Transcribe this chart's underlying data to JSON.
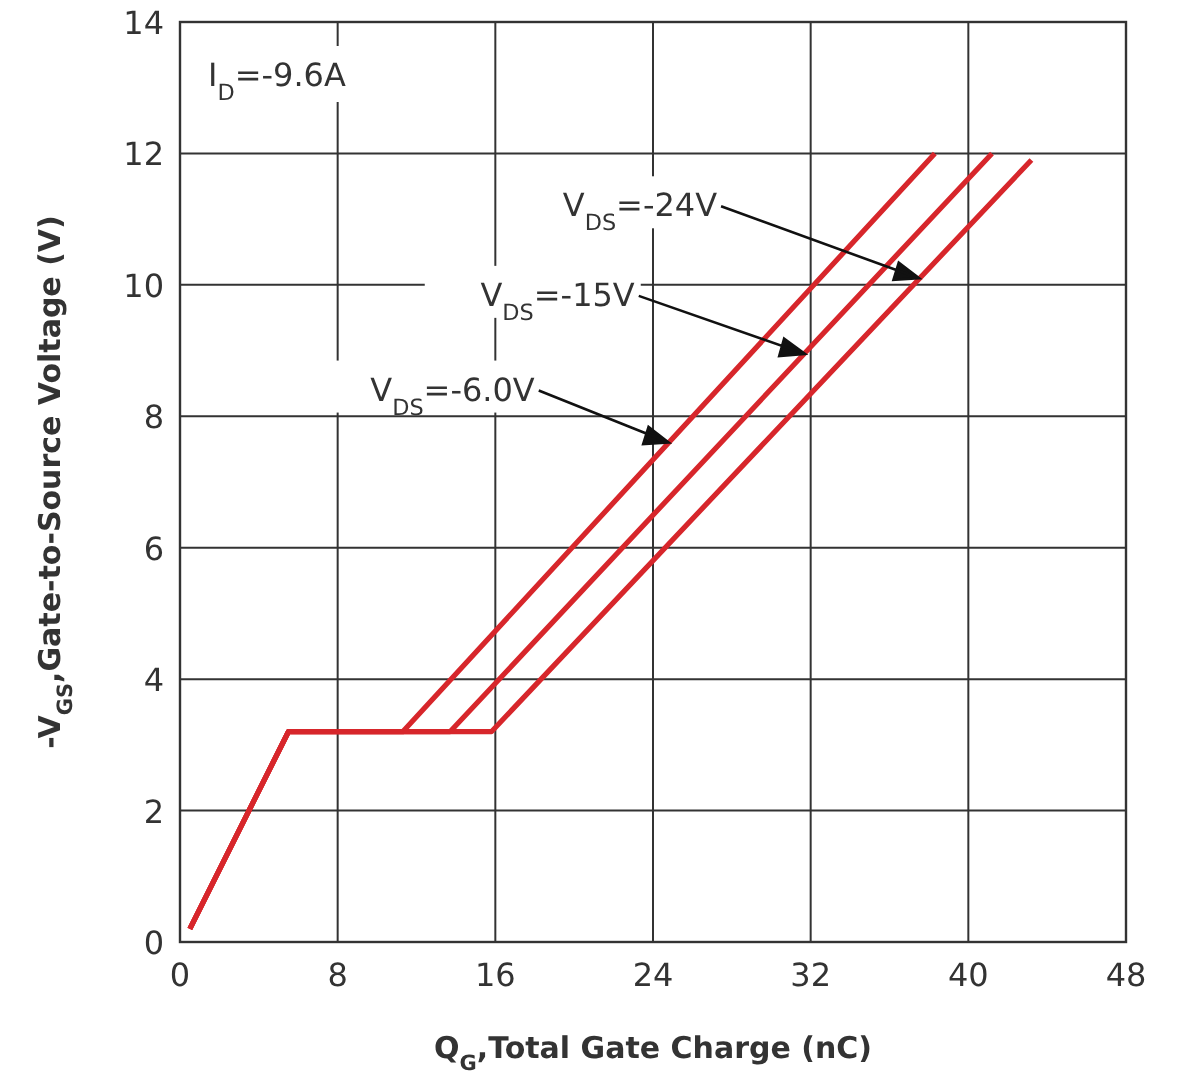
{
  "chart_data": {
    "type": "line",
    "xlabel": "Q$_{G}$,Total Gate Charge (nC)",
    "ylabel": "-V$_{GS}$,Gate-to-Source Voltage (V)",
    "xlim": [
      0,
      48
    ],
    "ylim": [
      0,
      14
    ],
    "xticks": [
      0,
      8,
      16,
      24,
      32,
      40,
      48
    ],
    "yticks": [
      0,
      2,
      4,
      6,
      8,
      10,
      12,
      14
    ],
    "grid": true,
    "marker": "none",
    "line_style": "solid",
    "series": [
      {
        "color": "#d7262b",
        "x": [
          0.5,
          5.5,
          11.3,
          38.3
        ],
        "values": [
          0.2,
          3.2,
          3.2,
          12
        ]
      },
      {
        "color": "#d7262b",
        "x": [
          0.5,
          5.5,
          13.7,
          41.2
        ],
        "values": [
          0.2,
          3.2,
          3.2,
          12
        ]
      },
      {
        "color": "#d7262b",
        "x": [
          0.5,
          5.5,
          15.8,
          43.2
        ],
        "values": [
          0.2,
          3.2,
          3.2,
          11.9
        ]
      }
    ],
    "annotations": [
      "I$_{D}$=-9.6A",
      {
        "text": "V$_{DS}$=-24V",
        "x": 37.5,
        "y": 10.1
      },
      {
        "text": "V$_{DS}$=-15V",
        "x": 31.7,
        "y": 8.95
      },
      {
        "text": "V$_{DS}$=-6.0V",
        "x": 24.8,
        "y": 7.6
      }
    ]
  }
}
